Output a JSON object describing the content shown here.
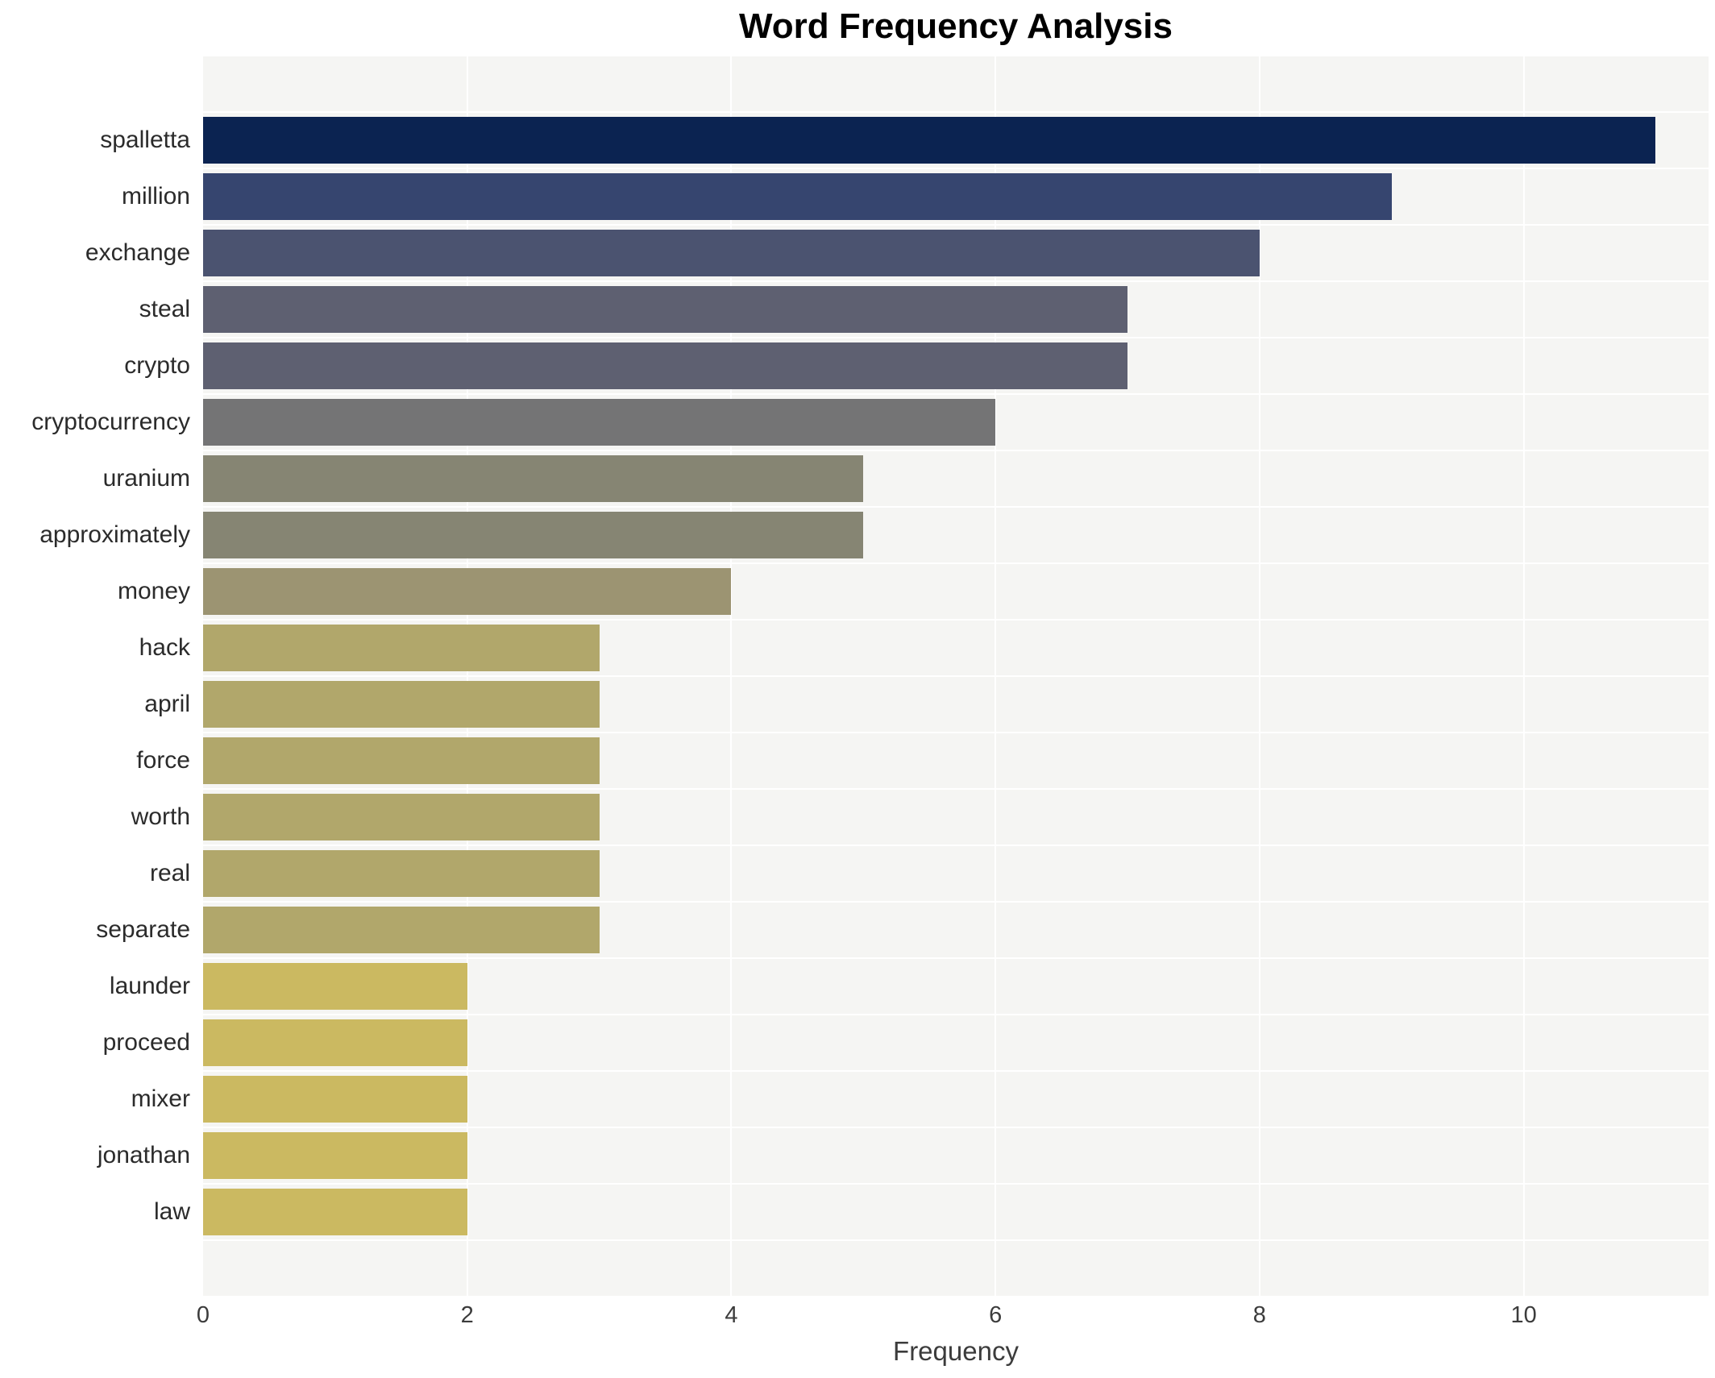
{
  "chart_data": {
    "type": "bar",
    "orientation": "horizontal",
    "title": "Word Frequency Analysis",
    "xlabel": "Frequency",
    "ylabel": "",
    "categories": [
      "spalletta",
      "million",
      "exchange",
      "steal",
      "crypto",
      "cryptocurrency",
      "uranium",
      "approximately",
      "money",
      "hack",
      "april",
      "force",
      "worth",
      "real",
      "separate",
      "launder",
      "proceed",
      "mixer",
      "jonathan",
      "law"
    ],
    "values": [
      11,
      9,
      8,
      7,
      7,
      6,
      5,
      5,
      4,
      3,
      3,
      3,
      3,
      3,
      3,
      2,
      2,
      2,
      2,
      2
    ],
    "bar_colors": [
      "#0b2351",
      "#36456f",
      "#4b5370",
      "#5e6071",
      "#5e6071",
      "#747475",
      "#868573",
      "#868573",
      "#9c9472",
      "#b1a76b",
      "#b1a76b",
      "#b1a76b",
      "#b1a76b",
      "#b1a76b",
      "#b1a76b",
      "#cbb961",
      "#cbb961",
      "#cbb961",
      "#cbb961",
      "#cbb961"
    ],
    "xlim": [
      0,
      11.4
    ],
    "xticks": [
      0,
      2,
      4,
      6,
      8,
      10
    ],
    "grid": "on",
    "legend": "none",
    "plot_background": "#f5f5f3",
    "grid_color": "#ffffff",
    "title_color": "#000000",
    "label_color": "#2b2b2b",
    "tick_color": "#3c3c3c"
  }
}
